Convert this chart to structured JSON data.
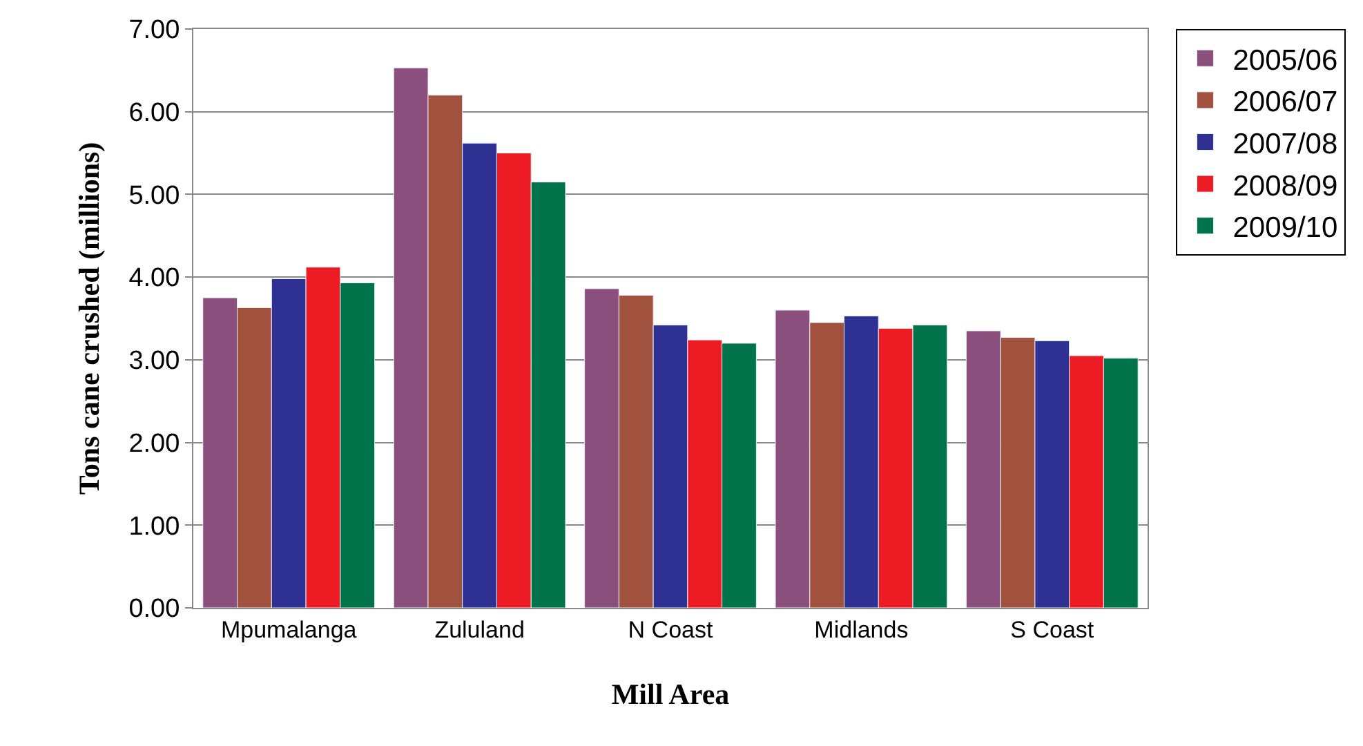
{
  "chart_data": {
    "type": "bar",
    "xlabel": "Mill Area",
    "ylabel": "Tons cane crushed (millions)",
    "categories": [
      "Mpumalanga",
      "Zululand",
      "N Coast",
      "Midlands",
      "S Coast"
    ],
    "series": [
      {
        "name": "2005/06",
        "color": "#8b4f7d",
        "values": [
          3.75,
          6.53,
          3.86,
          3.6,
          3.35
        ]
      },
      {
        "name": "2006/07",
        "color": "#a0523f",
        "values": [
          3.63,
          6.2,
          3.78,
          3.45,
          3.27
        ]
      },
      {
        "name": "2007/08",
        "color": "#2e3192",
        "values": [
          3.98,
          5.62,
          3.42,
          3.53,
          3.23
        ]
      },
      {
        "name": "2008/09",
        "color": "#ed1c24",
        "values": [
          4.12,
          5.5,
          3.24,
          3.38,
          3.05
        ]
      },
      {
        "name": "2009/10",
        "color": "#00734a",
        "values": [
          3.93,
          5.15,
          3.2,
          3.42,
          3.02
        ]
      }
    ],
    "ylim": [
      0,
      7
    ],
    "yticks": [
      {
        "value": 0,
        "label": "0.00"
      },
      {
        "value": 1,
        "label": "1.00"
      },
      {
        "value": 2,
        "label": "2.00"
      },
      {
        "value": 3,
        "label": "3.00"
      },
      {
        "value": 4,
        "label": "4.00"
      },
      {
        "value": 5,
        "label": "5.00"
      },
      {
        "value": 6,
        "label": "6.00"
      },
      {
        "value": 7,
        "label": "7.00"
      }
    ],
    "grid": "y",
    "legend": "right"
  }
}
